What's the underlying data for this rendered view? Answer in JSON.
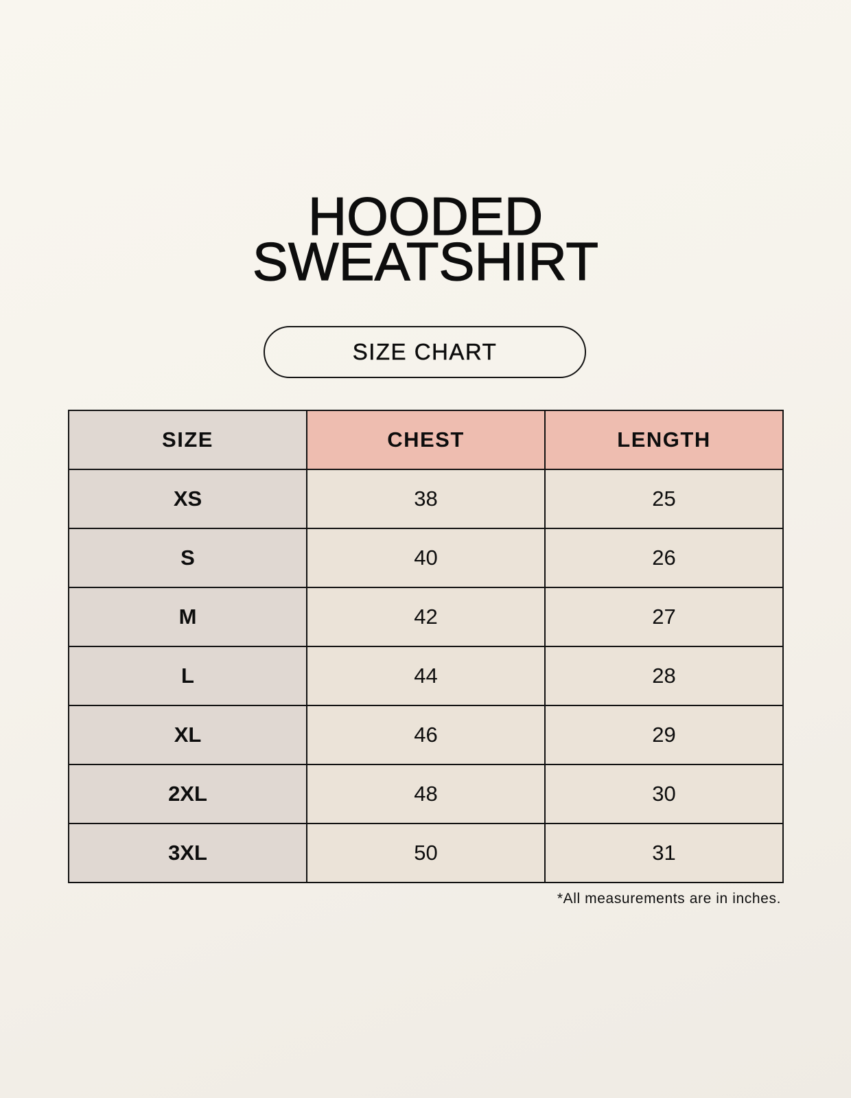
{
  "title": {
    "line1": "HOODED",
    "line2": "SWEATSHIRT"
  },
  "badge": "SIZE CHART",
  "table": {
    "headers": [
      "SIZE",
      "CHEST",
      "LENGTH"
    ],
    "rows": [
      [
        "XS",
        "38",
        "25"
      ],
      [
        "S",
        "40",
        "26"
      ],
      [
        "M",
        "42",
        "27"
      ],
      [
        "L",
        "44",
        "28"
      ],
      [
        "XL",
        "46",
        "29"
      ],
      [
        "2XL",
        "48",
        "30"
      ],
      [
        "3XL",
        "50",
        "31"
      ]
    ]
  },
  "note": "*All measurements are in inches.",
  "colors": {
    "size_column": "#e0d8d2",
    "measure_header": "#eebdb0",
    "measure_cells": "#ebe3d8",
    "border": "#111111"
  }
}
